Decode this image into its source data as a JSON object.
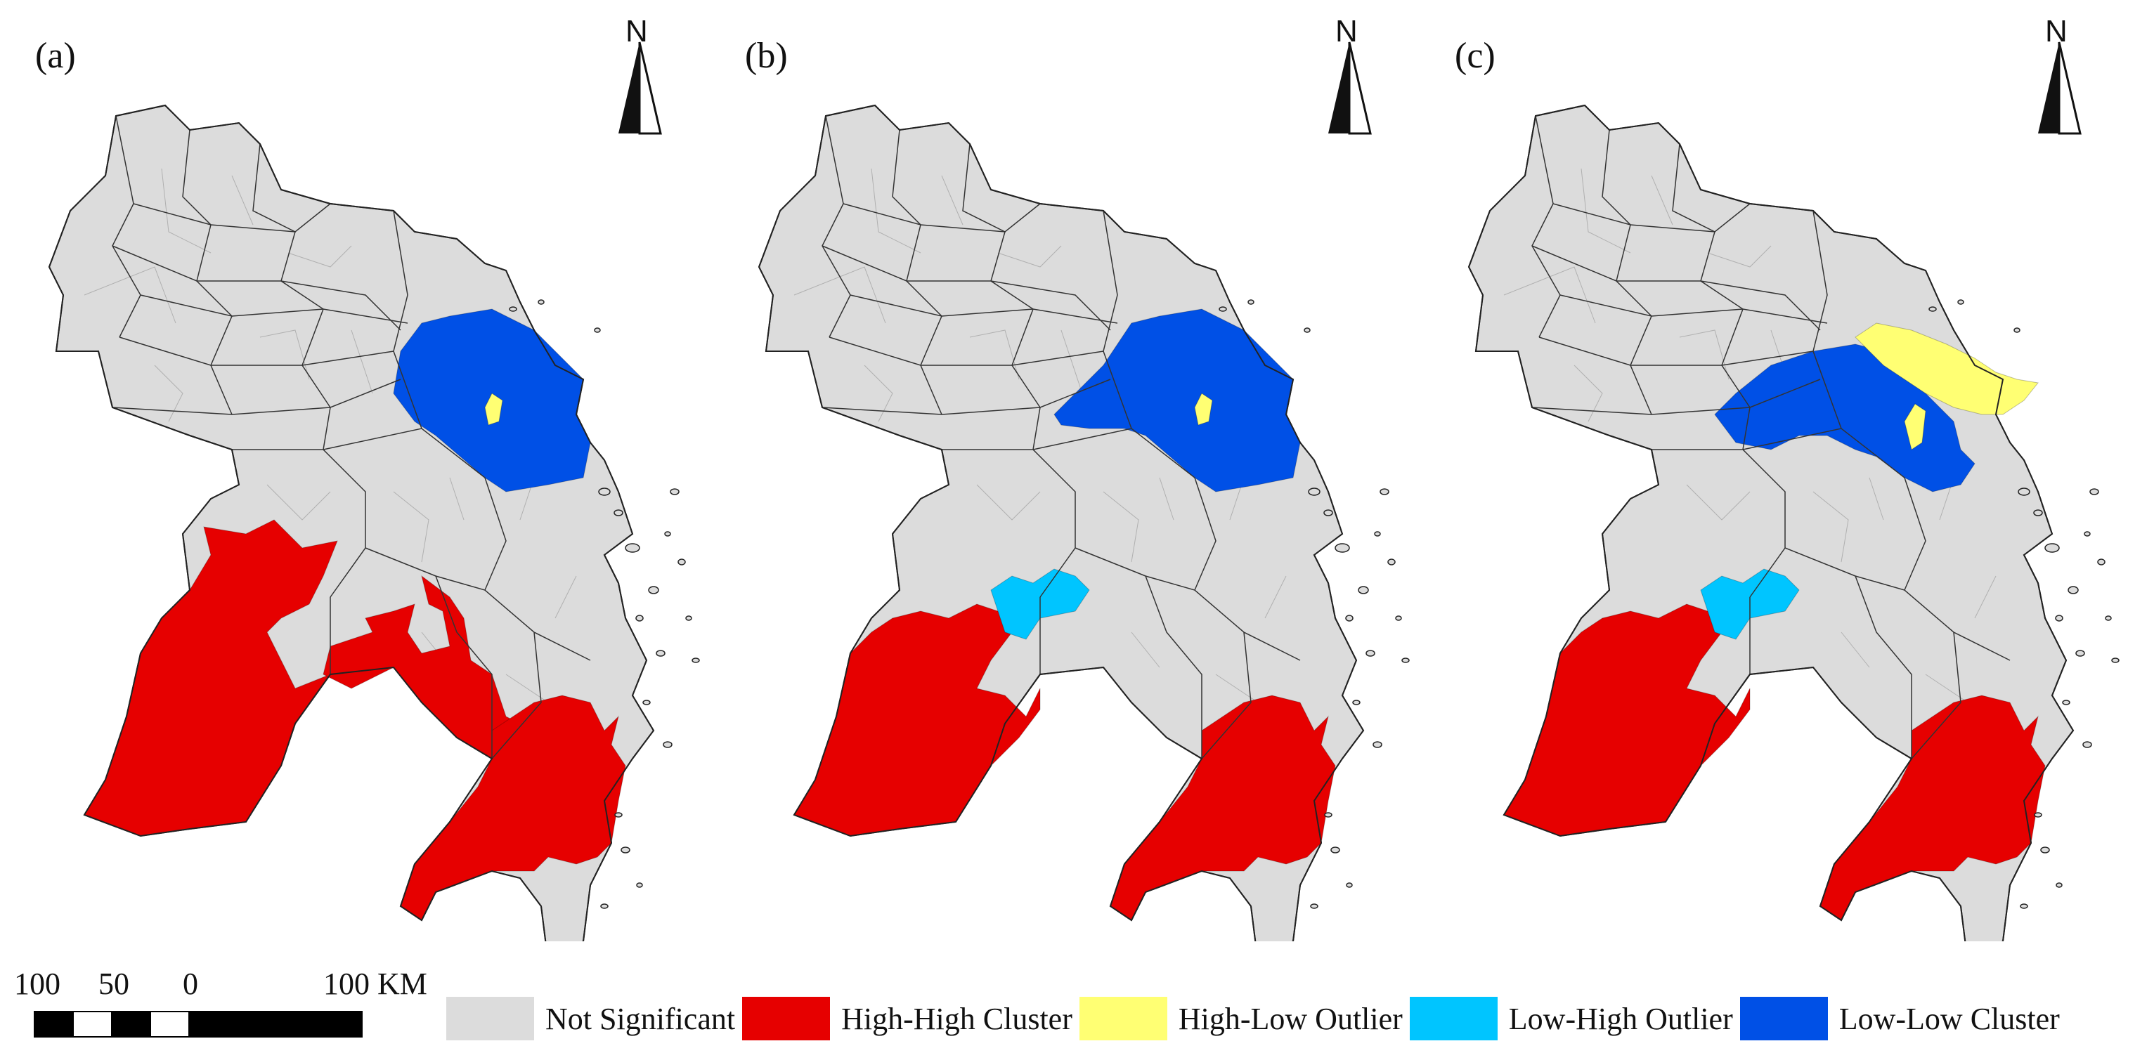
{
  "panels": [
    {
      "label": "(a)"
    },
    {
      "label": "(b)"
    },
    {
      "label": "(c)"
    }
  ],
  "north_label": "N",
  "scale": {
    "ticks": [
      "100",
      "50",
      "0",
      "100 KM"
    ]
  },
  "legend": [
    {
      "label": "Not Significant",
      "color": "#dcdcdc",
      "class": "ns"
    },
    {
      "label": "High-High Cluster",
      "color": "#e60000",
      "class": "hh"
    },
    {
      "label": "High-Low Outlier",
      "color": "#ffff73",
      "class": "hl"
    },
    {
      "label": "Low-High Outlier",
      "color": "#00c5ff",
      "class": "lh"
    },
    {
      "label": "Low-Low Cluster",
      "color": "#0050e6",
      "class": "ll"
    }
  ],
  "panel_classes": [
    {
      "hh_south_west": true,
      "hh_center": true,
      "hh_south_east": true,
      "ll_east": true,
      "hl_east": true,
      "lh_center": false,
      "hl_north_east": false
    },
    {
      "hh_south_west": true,
      "hh_center": false,
      "hh_south_east": true,
      "ll_east": true,
      "hl_east": true,
      "lh_center": true,
      "hl_north_east": false
    },
    {
      "hh_south_west": true,
      "hh_center": false,
      "hh_south_east": true,
      "ll_east": true,
      "hl_east": true,
      "lh_center": true,
      "hl_north_east": true
    }
  ]
}
